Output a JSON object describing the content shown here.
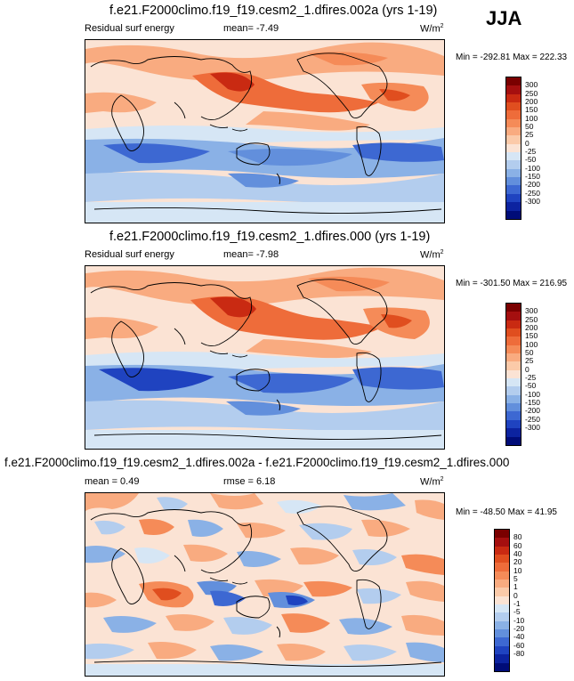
{
  "season": "JJA",
  "panels": [
    {
      "title": "f.e21.F2000climo.f19_f19.cesm2_1.dfires.002a (yrs 1-19)",
      "left_label": "Residual surf energy",
      "center_label": "mean=  -7.49",
      "units": "W/m",
      "units_sup": "2",
      "minmax": "Min = -292.81 Max = 222.33",
      "colorbar_labels": [
        "300",
        "250",
        "200",
        "150",
        "100",
        "50",
        "25",
        "0",
        "-25",
        "-50",
        "-100",
        "-150",
        "-200",
        "-250",
        "-300"
      ]
    },
    {
      "title": "f.e21.F2000climo.f19_f19.cesm2_1.dfires.000 (yrs 1-19)",
      "left_label": "Residual surf energy",
      "center_label": "mean=  -7.98",
      "units": "W/m",
      "units_sup": "2",
      "minmax": "Min = -301.50 Max = 216.95",
      "colorbar_labels": [
        "300",
        "250",
        "200",
        "150",
        "100",
        "50",
        "25",
        "0",
        "-25",
        "-50",
        "-100",
        "-150",
        "-200",
        "-250",
        "-300"
      ]
    },
    {
      "title": "f.e21.F2000climo.f19_f19.cesm2_1.dfires.002a - f.e21.F2000climo.f19_f19.cesm2_1.dfires.000",
      "left_label": "mean =  0.49",
      "center_label": "rmse =  6.18",
      "units": "W/m",
      "units_sup": "2",
      "minmax": "Min = -48.50 Max = 41.95",
      "colorbar_labels": [
        "80",
        "60",
        "40",
        "20",
        "10",
        "5",
        "1",
        "0",
        "-1",
        "-5",
        "-10",
        "-20",
        "-40",
        "-60",
        "-80"
      ]
    }
  ],
  "colors": {
    "scale": [
      "#7a0000",
      "#a50f0f",
      "#c92a12",
      "#e04e1f",
      "#ee6c3a",
      "#f58b58",
      "#f9ab80",
      "#fbcaa9",
      "#fbe3d4",
      "#d6e6f5",
      "#b3cdee",
      "#8ab1e6",
      "#628fdc",
      "#3d68d2",
      "#1f43c0",
      "#0c23a0",
      "#000c78"
    ]
  }
}
